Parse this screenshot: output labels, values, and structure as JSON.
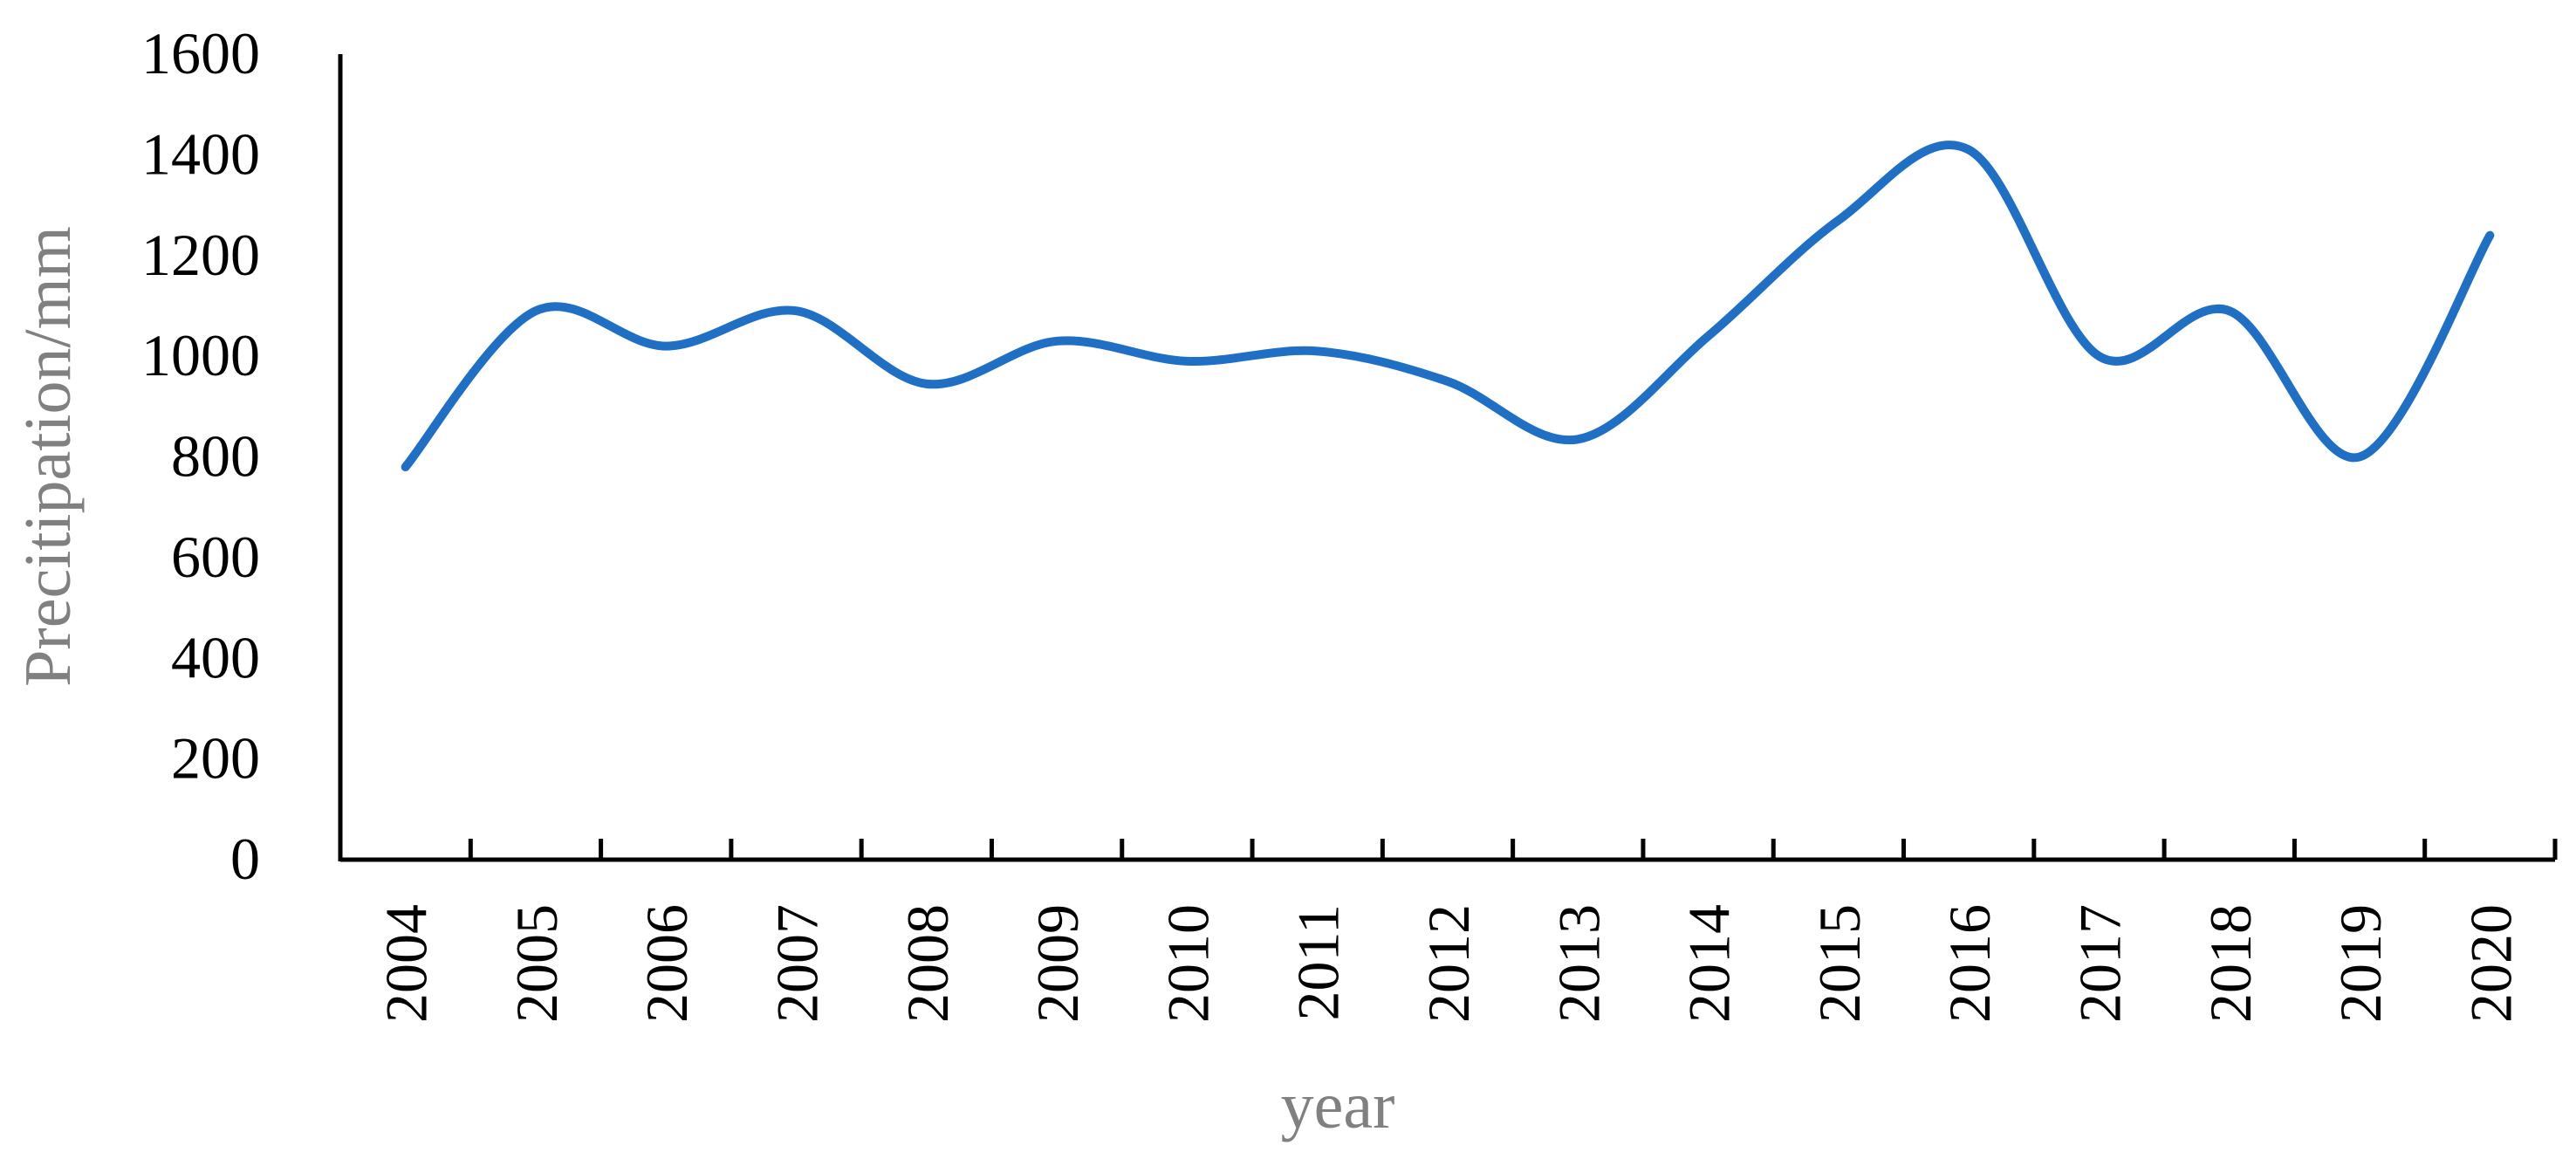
{
  "chart_data": {
    "type": "line",
    "x_label": "year",
    "y_label": "Precitipation/mm",
    "categories": [
      "2004",
      "2005",
      "2006",
      "2007",
      "2008",
      "2009",
      "2010",
      "2011",
      "2012",
      "2013",
      "2014",
      "2015",
      "2016",
      "2017",
      "2018",
      "2019",
      "2020"
    ],
    "values": [
      780,
      1090,
      1020,
      1090,
      945,
      1030,
      990,
      1010,
      950,
      835,
      1040,
      1270,
      1410,
      1000,
      1090,
      800,
      1240
    ],
    "color": "#1f6fc5",
    "smooth": true,
    "ylim": [
      0,
      1600
    ],
    "yticks": [
      0,
      200,
      400,
      600,
      800,
      1000,
      1200,
      1400,
      1600
    ],
    "grid": false
  }
}
